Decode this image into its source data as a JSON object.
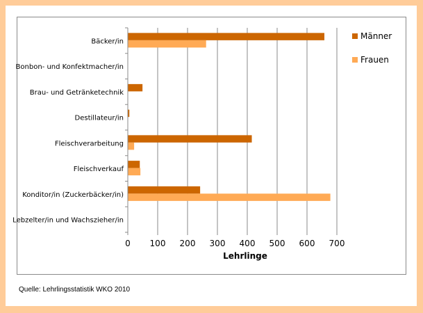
{
  "chart_data": {
    "type": "bar",
    "orientation": "horizontal",
    "categories": [
      "Bäcker/in",
      "Bonbon- und Konfektmacher/in",
      "Brau- und Getränketechnik",
      "Destillateur/in",
      "Fleischverarbeitung",
      "Fleischverkauf",
      "Konditor/in (Zuckerbäcker/in)",
      "Lebzelter/in und Wachszieher/in"
    ],
    "series": [
      {
        "name": "Männer",
        "color": "#CC6600",
        "values": [
          657,
          0,
          48,
          4,
          414,
          39,
          241,
          0
        ]
      },
      {
        "name": "Frauen",
        "color": "#FFAA55",
        "values": [
          261,
          0,
          0,
          0,
          20,
          41,
          677,
          0
        ]
      }
    ],
    "xlabel": "Lehrlinge",
    "ylabel": "",
    "xlim": [
      0,
      700
    ],
    "xticks": [
      "0",
      "100",
      "200",
      "300",
      "400",
      "500",
      "600",
      "700"
    ],
    "grid": true,
    "legend_position": "right"
  },
  "source": "Quelle: Lehrlingsstatistik WKO 2010"
}
